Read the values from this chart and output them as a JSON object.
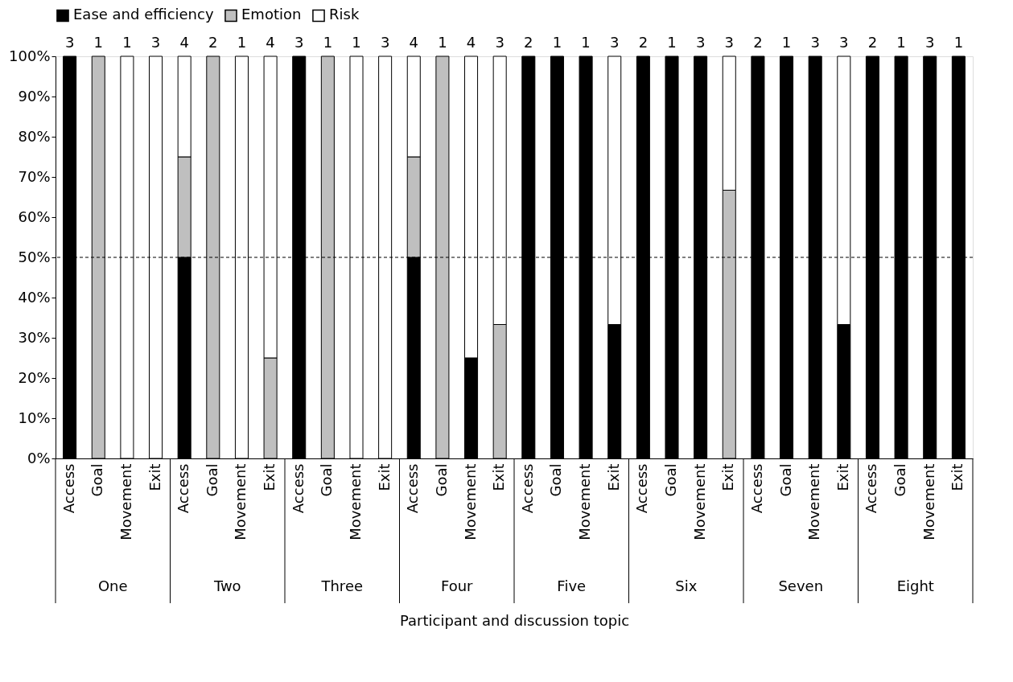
{
  "chart_data": {
    "type": "bar",
    "stacked": true,
    "xlabel": "Participant and discussion topic",
    "categories": [
      "Access",
      "Goal",
      "Movement",
      "Exit",
      "Access",
      "Goal",
      "Movement",
      "Exit",
      "Access",
      "Goal",
      "Movement",
      "Exit",
      "Access",
      "Goal",
      "Movement",
      "Exit",
      "Access",
      "Goal",
      "Movement",
      "Exit",
      "Access",
      "Goal",
      "Movement",
      "Exit",
      "Access",
      "Goal",
      "Movement",
      "Exit",
      "Access",
      "Goal",
      "Movement",
      "Exit"
    ],
    "series": [
      {
        "name": "Ease and efficiency",
        "color": "#000000",
        "values": [
          100,
          null,
          null,
          null,
          50,
          null,
          null,
          null,
          100,
          null,
          null,
          null,
          50,
          null,
          25,
          null,
          100,
          100,
          100,
          33.3,
          100,
          100,
          100,
          null,
          100,
          100,
          100,
          33.3,
          100,
          100,
          100,
          100
        ]
      },
      {
        "name": "Emotion",
        "color": "#bfbfbf",
        "values": [
          null,
          100,
          null,
          null,
          25,
          100,
          null,
          25,
          null,
          100,
          null,
          null,
          25,
          100,
          null,
          33.3,
          null,
          null,
          null,
          null,
          null,
          null,
          null,
          66.7,
          null,
          null,
          null,
          null,
          null,
          null,
          null,
          null
        ]
      },
      {
        "name": "Risk",
        "color": "#ffffff",
        "values": [
          null,
          null,
          100,
          100,
          25,
          null,
          100,
          75,
          null,
          null,
          100,
          100,
          25,
          null,
          75,
          66.7,
          null,
          null,
          null,
          66.7,
          null,
          null,
          null,
          33.3,
          null,
          null,
          null,
          66.7,
          null,
          null,
          null,
          null
        ]
      }
    ],
    "annotations": [
      "One",
      "Two",
      "Three",
      "Four",
      "Five",
      "Six",
      "Seven",
      "Eight",
      {
        "text": "3",
        "y": 100
      },
      {
        "text": "1",
        "y": 100
      },
      {
        "text": "1",
        "y": 100
      },
      {
        "text": "3",
        "y": 100
      },
      {
        "text": "4",
        "y": 100
      },
      {
        "text": "2",
        "y": 100
      },
      {
        "text": "1",
        "y": 100
      },
      {
        "text": "4",
        "y": 100
      },
      {
        "text": "3",
        "y": 100
      },
      {
        "text": "1",
        "y": 100
      },
      {
        "text": "1",
        "y": 100
      },
      {
        "text": "3",
        "y": 100
      },
      {
        "text": "4",
        "y": 100
      },
      {
        "text": "1",
        "y": 100
      },
      {
        "text": "4",
        "y": 100
      },
      {
        "text": "3",
        "y": 100
      },
      {
        "text": "2",
        "y": 100
      },
      {
        "text": "1",
        "y": 100
      },
      {
        "text": "1",
        "y": 100
      },
      {
        "text": "3",
        "y": 100
      },
      {
        "text": "2",
        "y": 100
      },
      {
        "text": "1",
        "y": 100
      },
      {
        "text": "3",
        "y": 100
      },
      {
        "text": "3",
        "y": 100
      },
      {
        "text": "2",
        "y": 100
      },
      {
        "text": "1",
        "y": 100
      },
      {
        "text": "3",
        "y": 100
      },
      {
        "text": "3",
        "y": 100
      },
      {
        "text": "2",
        "y": 100
      },
      {
        "text": "1",
        "y": 100
      },
      {
        "text": "3",
        "y": 100
      },
      {
        "text": "1",
        "y": 100
      }
    ],
    "ylim": [
      0,
      100
    ],
    "yticks": [
      {
        "value": 0,
        "label": "0%"
      },
      {
        "value": 10,
        "label": "10%"
      },
      {
        "value": 20,
        "label": "20%"
      },
      {
        "value": 30,
        "label": "30%"
      },
      {
        "value": 40,
        "label": "40%"
      },
      {
        "value": 50,
        "label": "50%"
      },
      {
        "value": 60,
        "label": "60%"
      },
      {
        "value": 70,
        "label": "70%"
      },
      {
        "value": 80,
        "label": "80%"
      },
      {
        "value": 90,
        "label": "90%"
      },
      {
        "value": 100,
        "label": "100%"
      }
    ],
    "ref_lines": [
      {
        "axis": "y",
        "value": 50,
        "line_style": "dashed",
        "color": "#000000"
      }
    ],
    "grid": false,
    "legend": "top"
  }
}
